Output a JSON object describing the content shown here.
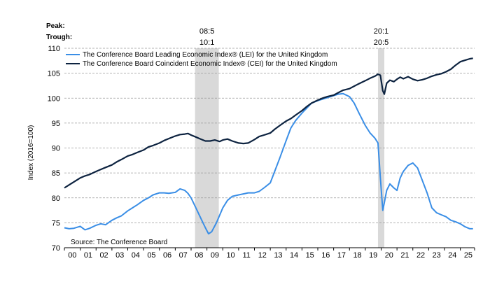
{
  "chart_data": {
    "type": "line",
    "ylabel": "Index (2016=100)",
    "source": "Source: The Conference Board",
    "peak_label": "Peak:",
    "trough_label": "Trough:",
    "ylim": [
      70,
      110
    ],
    "yticks": [
      70,
      75,
      80,
      85,
      90,
      95,
      100,
      105,
      110
    ],
    "xlim": [
      2000.0,
      2025.9
    ],
    "xtick_labels": [
      "00",
      "01",
      "02",
      "03",
      "04",
      "05",
      "06",
      "07",
      "08",
      "09",
      "10",
      "11",
      "12",
      "13",
      "14",
      "15",
      "16",
      "17",
      "18",
      "19",
      "20",
      "21",
      "22",
      "23",
      "24",
      "25"
    ],
    "grid": "horizontal-dashed",
    "legend_position": "top-left",
    "recessions": [
      {
        "start": 2008.25,
        "end": 2009.75,
        "peak": "08:5",
        "trough": "10:1"
      },
      {
        "start": 2019.8,
        "end": 2020.2,
        "peak": "20:1",
        "trough": "20:5"
      }
    ],
    "colors": {
      "lei": "#3a8ee6",
      "cei": "#0d2340",
      "recession": "#d9d9d9",
      "grid": "#999999"
    },
    "series": [
      {
        "name": "The Conference Board Leading Economic Index® (LEI) for the United Kingdom",
        "key": "lei",
        "x": [
          2000.0,
          2000.3,
          2000.6,
          2001.0,
          2001.3,
          2001.6,
          2002.0,
          2002.3,
          2002.6,
          2003.0,
          2003.3,
          2003.6,
          2004.0,
          2004.3,
          2004.6,
          2005.0,
          2005.3,
          2005.6,
          2006.0,
          2006.3,
          2006.6,
          2007.0,
          2007.3,
          2007.6,
          2007.8,
          2008.0,
          2008.3,
          2008.6,
          2008.9,
          2009.1,
          2009.3,
          2009.6,
          2010.0,
          2010.3,
          2010.6,
          2011.0,
          2011.3,
          2011.6,
          2012.0,
          2012.3,
          2012.6,
          2013.0,
          2013.3,
          2013.6,
          2014.0,
          2014.3,
          2014.6,
          2015.0,
          2015.3,
          2015.6,
          2016.0,
          2016.3,
          2016.6,
          2017.0,
          2017.3,
          2017.6,
          2018.0,
          2018.3,
          2018.6,
          2019.0,
          2019.3,
          2019.6,
          2019.8,
          2019.95,
          2020.1,
          2020.2,
          2020.35,
          2020.55,
          2020.8,
          2021.0,
          2021.2,
          2021.4,
          2021.7,
          2022.0,
          2022.3,
          2022.6,
          2022.9,
          2023.2,
          2023.5,
          2023.8,
          2024.1,
          2024.4,
          2024.7,
          2025.0,
          2025.3,
          2025.6,
          2025.8
        ],
        "values": [
          74.0,
          73.8,
          73.9,
          74.3,
          73.6,
          73.9,
          74.5,
          74.8,
          74.6,
          75.5,
          76.0,
          76.4,
          77.4,
          78.0,
          78.6,
          79.5,
          80.0,
          80.6,
          81.0,
          81.0,
          80.9,
          81.1,
          81.8,
          81.5,
          80.9,
          80.0,
          78.0,
          76.0,
          74.0,
          72.8,
          73.2,
          75.0,
          78.0,
          79.5,
          80.3,
          80.6,
          80.8,
          81.0,
          81.0,
          81.3,
          82.0,
          83.0,
          85.5,
          88.0,
          91.5,
          94.0,
          95.5,
          97.0,
          98.0,
          99.0,
          99.5,
          99.8,
          100.1,
          100.5,
          100.8,
          100.9,
          100.3,
          99.0,
          97.0,
          94.5,
          93.0,
          92.0,
          91.0,
          84.0,
          77.5,
          79.0,
          81.5,
          82.8,
          82.0,
          81.5,
          84.0,
          85.3,
          86.5,
          87.0,
          86.0,
          83.5,
          81.0,
          78.0,
          77.0,
          76.6,
          76.2,
          75.5,
          75.2,
          74.8,
          74.2,
          73.8,
          73.8
        ]
      },
      {
        "name": "The Conference Board Coincident Economic Index® (CEI) for the United Kingdom",
        "key": "cei",
        "x": [
          2000.0,
          2000.3,
          2000.6,
          2001.0,
          2001.3,
          2001.6,
          2002.0,
          2002.3,
          2002.6,
          2003.0,
          2003.3,
          2003.6,
          2004.0,
          2004.3,
          2004.6,
          2005.0,
          2005.3,
          2005.6,
          2006.0,
          2006.3,
          2006.6,
          2007.0,
          2007.3,
          2007.6,
          2007.8,
          2008.0,
          2008.3,
          2008.6,
          2008.9,
          2009.2,
          2009.5,
          2009.8,
          2010.0,
          2010.3,
          2010.6,
          2011.0,
          2011.3,
          2011.6,
          2012.0,
          2012.3,
          2012.6,
          2013.0,
          2013.3,
          2013.6,
          2014.0,
          2014.3,
          2014.6,
          2015.0,
          2015.3,
          2015.6,
          2016.0,
          2016.3,
          2016.6,
          2017.0,
          2017.3,
          2017.6,
          2018.0,
          2018.3,
          2018.6,
          2019.0,
          2019.3,
          2019.6,
          2019.8,
          2019.95,
          2020.1,
          2020.2,
          2020.35,
          2020.55,
          2020.8,
          2021.0,
          2021.2,
          2021.4,
          2021.7,
          2022.0,
          2022.3,
          2022.6,
          2022.9,
          2023.2,
          2023.5,
          2023.8,
          2024.1,
          2024.4,
          2024.7,
          2025.0,
          2025.3,
          2025.6,
          2025.8
        ],
        "values": [
          82.0,
          82.6,
          83.2,
          84.0,
          84.4,
          84.7,
          85.3,
          85.7,
          86.1,
          86.6,
          87.2,
          87.7,
          88.4,
          88.7,
          89.1,
          89.6,
          90.2,
          90.5,
          91.0,
          91.5,
          91.9,
          92.4,
          92.7,
          92.8,
          92.9,
          92.6,
          92.2,
          91.8,
          91.4,
          91.4,
          91.6,
          91.3,
          91.6,
          91.8,
          91.4,
          91.0,
          90.9,
          91.0,
          91.7,
          92.3,
          92.6,
          93.0,
          93.8,
          94.5,
          95.4,
          95.9,
          96.6,
          97.5,
          98.3,
          99.0,
          99.6,
          100.0,
          100.3,
          100.6,
          101.1,
          101.6,
          101.9,
          102.4,
          102.9,
          103.5,
          104.0,
          104.4,
          104.8,
          104.6,
          101.5,
          100.8,
          103.0,
          103.6,
          103.3,
          103.8,
          104.2,
          103.9,
          104.3,
          103.8,
          103.5,
          103.7,
          104.0,
          104.4,
          104.7,
          104.9,
          105.3,
          105.8,
          106.6,
          107.3,
          107.6,
          107.9,
          108.0
        ]
      }
    ]
  }
}
